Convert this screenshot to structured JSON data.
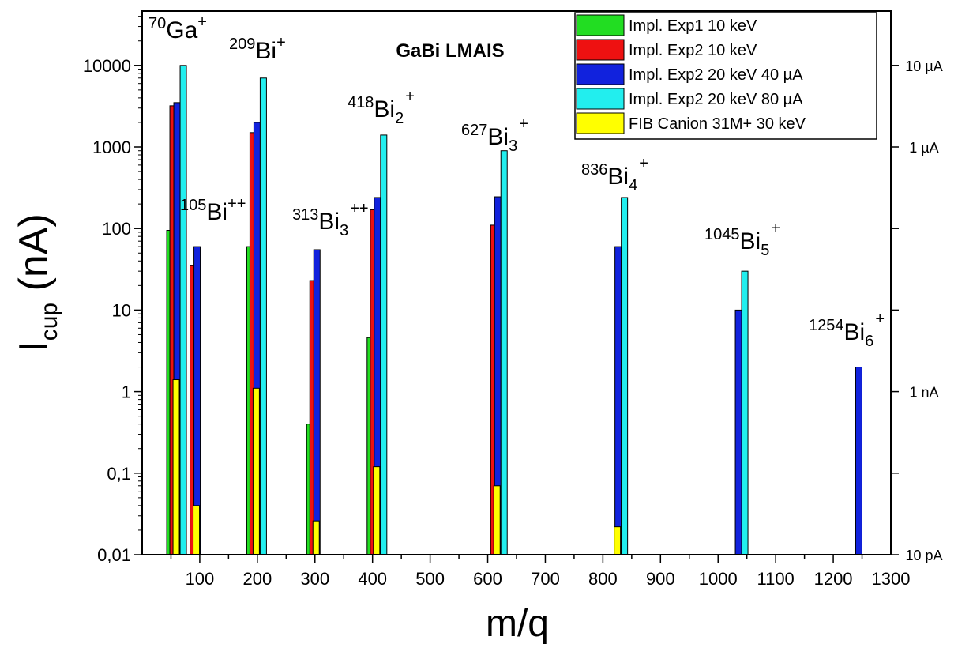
{
  "chart_data": {
    "type": "bar",
    "title": "GaBi LMAIS",
    "xlabel": "m/q",
    "ylabel": {
      "main": "I",
      "sub": "cup",
      "rest": " (nA)"
    },
    "xlim": [
      0,
      1300
    ],
    "x_ticks": [
      "100",
      "200",
      "300",
      "400",
      "500",
      "600",
      "700",
      "800",
      "900",
      "1000",
      "1100",
      "1200",
      "1300"
    ],
    "yscale": "log",
    "ylim": [
      0.01,
      40000
    ],
    "y_ticks": [
      "0,01",
      "0,1",
      "1",
      "10",
      "100",
      "1000",
      "10000"
    ],
    "right_axis": {
      "labels": [
        {
          "text": "10 µA",
          "value": 10000
        },
        {
          "text": "1 µA",
          "value": 1000
        },
        {
          "text": "1 nA",
          "value": 1
        },
        {
          "text": "10 pA",
          "value": 0.01
        }
      ],
      "ticks": [
        10000,
        1000,
        100,
        10,
        1,
        0.1,
        0.01
      ]
    },
    "grid": false,
    "legend_position": "top-right",
    "series": [
      {
        "name": "Impl. Exp1 10 keV",
        "color": "#22dd22",
        "points": [
          {
            "x": 70,
            "y": 95
          },
          {
            "x": 209,
            "y": 60
          },
          {
            "x": 313,
            "y": 0.4
          },
          {
            "x": 418,
            "y": 4.6
          }
        ]
      },
      {
        "name": "Impl. Exp2 10 keV",
        "color": "#ee1111",
        "points": [
          {
            "x": 70,
            "y": 3200
          },
          {
            "x": 105,
            "y": 35
          },
          {
            "x": 209,
            "y": 1500
          },
          {
            "x": 313,
            "y": 23
          },
          {
            "x": 418,
            "y": 170
          },
          {
            "x": 627,
            "y": 110
          }
        ]
      },
      {
        "name": "Impl. Exp2 20 keV 40 µA",
        "color": "#1122dd",
        "points": [
          {
            "x": 70,
            "y": 3500
          },
          {
            "x": 105,
            "y": 60
          },
          {
            "x": 209,
            "y": 2000
          },
          {
            "x": 313,
            "y": 55
          },
          {
            "x": 418,
            "y": 240
          },
          {
            "x": 627,
            "y": 245
          },
          {
            "x": 836,
            "y": 60
          },
          {
            "x": 1045,
            "y": 10
          },
          {
            "x": 1254,
            "y": 2
          }
        ]
      },
      {
        "name": "Impl. Exp2 20 keV 80 µA",
        "color": "#22eeee",
        "points": [
          {
            "x": 70,
            "y": 10000
          },
          {
            "x": 209,
            "y": 7000
          },
          {
            "x": 418,
            "y": 1400
          },
          {
            "x": 627,
            "y": 900
          },
          {
            "x": 836,
            "y": 240
          },
          {
            "x": 1045,
            "y": 30
          }
        ]
      },
      {
        "name": "FIB Canion 31M+ 30 keV",
        "color": "#ffff00",
        "points": [
          {
            "x": 70,
            "y": 1.4
          },
          {
            "x": 105,
            "y": 0.04
          },
          {
            "x": 209,
            "y": 1.1
          },
          {
            "x": 313,
            "y": 0.026
          },
          {
            "x": 418,
            "y": 0.12
          },
          {
            "x": 627,
            "y": 0.07
          },
          {
            "x": 836,
            "y": 0.022
          }
        ]
      }
    ],
    "annotations": [
      {
        "mass": "70",
        "base": "Ga",
        "charge": "+",
        "sub": ""
      },
      {
        "mass": "209",
        "base": "Bi",
        "charge": "+",
        "sub": ""
      },
      {
        "mass": "105",
        "base": "Bi",
        "charge": "++",
        "sub": ""
      },
      {
        "mass": "313",
        "base": "Bi",
        "charge": "++",
        "sub": "3"
      },
      {
        "mass": "418",
        "base": "Bi",
        "charge": "+",
        "sub": "2"
      },
      {
        "mass": "627",
        "base": "Bi",
        "charge": "+",
        "sub": "3"
      },
      {
        "mass": "836",
        "base": "Bi",
        "charge": "+",
        "sub": "4"
      },
      {
        "mass": "1045",
        "base": "Bi",
        "charge": "+",
        "sub": "5"
      },
      {
        "mass": "1254",
        "base": "Bi",
        "charge": "+",
        "sub": "6"
      }
    ]
  }
}
